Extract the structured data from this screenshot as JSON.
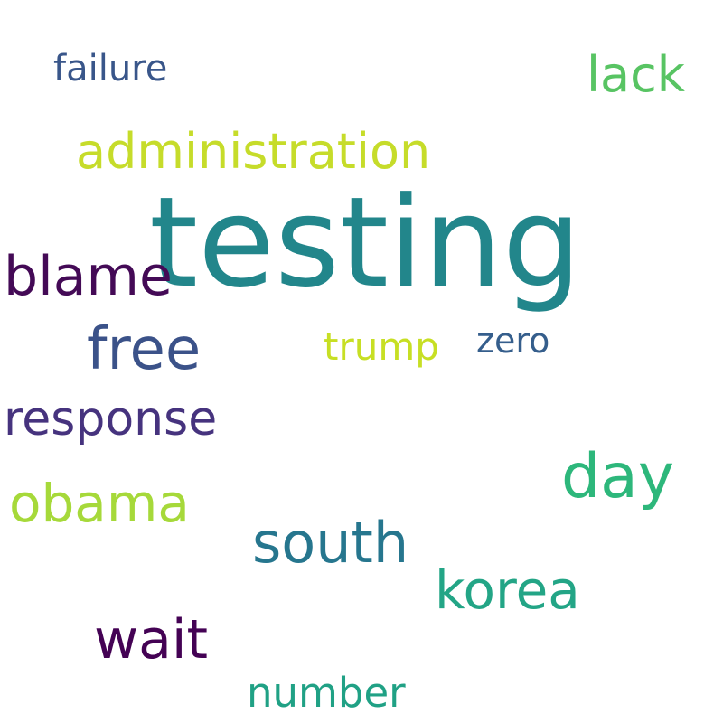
{
  "background": "#ffffff",
  "words": {
    "testing": {
      "text": "testing",
      "color": "#22868b"
    },
    "administration": {
      "text": "administration",
      "color": "#c6dc2a"
    },
    "blame": {
      "text": "blame",
      "color": "#440a56"
    },
    "free": {
      "text": "free",
      "color": "#3b5289"
    },
    "trump": {
      "text": "trump",
      "color": "#c7df24"
    },
    "zero": {
      "text": "zero",
      "color": "#355e8c"
    },
    "response": {
      "text": "response",
      "color": "#46337e"
    },
    "day": {
      "text": "day",
      "color": "#2db77b"
    },
    "obama": {
      "text": "obama",
      "color": "#a6d93a"
    },
    "south": {
      "text": "south",
      "color": "#26768e"
    },
    "korea": {
      "text": "korea",
      "color": "#23a586"
    },
    "wait": {
      "text": "wait",
      "color": "#440254"
    },
    "number": {
      "text": "number",
      "color": "#20a185"
    },
    "failure": {
      "text": "failure",
      "color": "#39568a"
    },
    "lack": {
      "text": "lack",
      "color": "#58c463"
    }
  }
}
